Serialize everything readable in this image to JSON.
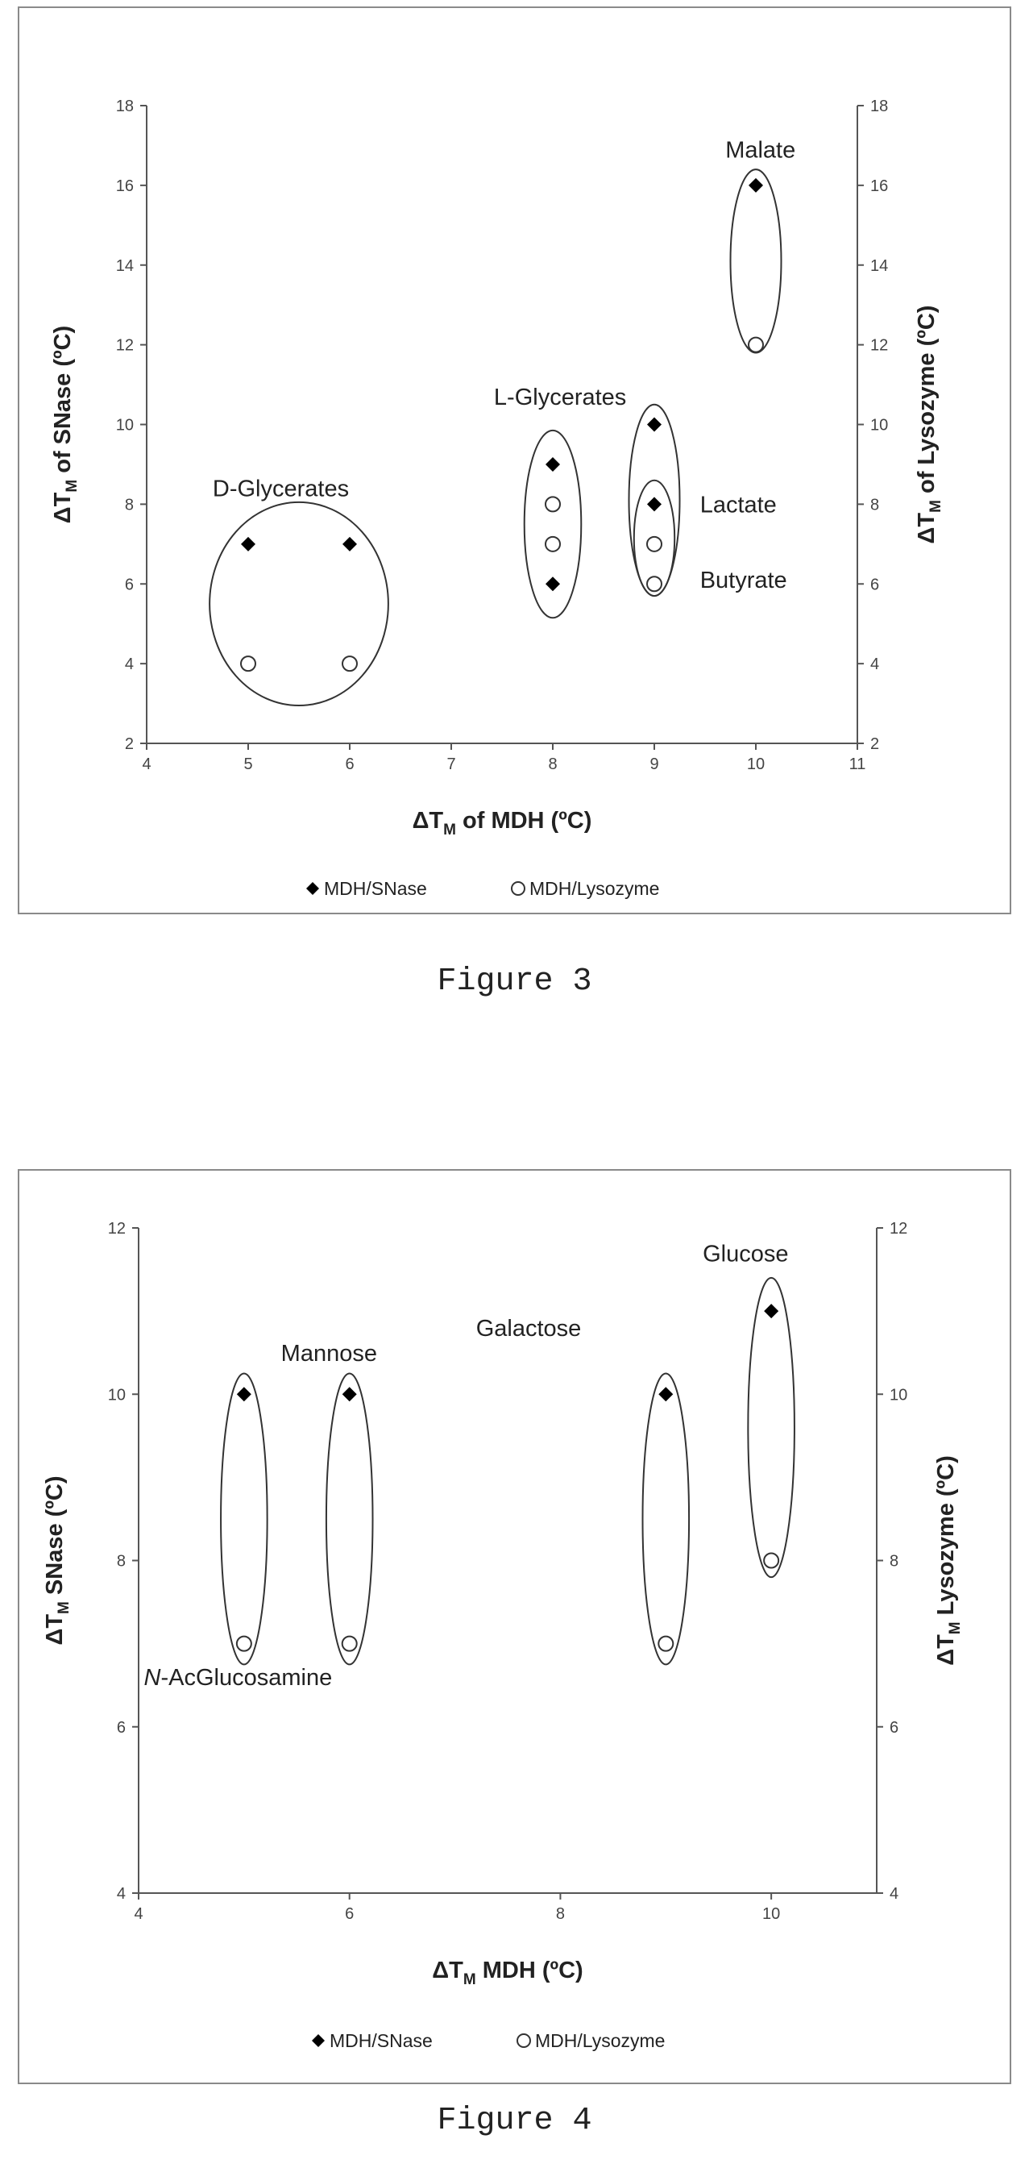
{
  "figures": [
    {
      "id": "fig3",
      "caption": "Figure 3",
      "chart_data": {
        "type": "scatter",
        "xlabel": {
          "prefix": "ΔT",
          "sub": "M",
          "suffix": " of MDH (ºC)"
        },
        "ylabel_left": {
          "prefix": "ΔT",
          "sub": "M",
          "suffix": " of SNase (ºC)"
        },
        "ylabel_right": {
          "prefix": "ΔT",
          "sub": "M",
          "suffix": " of Lysozyme (ºC)"
        },
        "xlim": [
          4,
          11
        ],
        "xticks": [
          4,
          5,
          6,
          7,
          8,
          9,
          10,
          11
        ],
        "ylim": [
          2,
          18
        ],
        "yticks": [
          2,
          4,
          6,
          8,
          10,
          12,
          14,
          16,
          18
        ],
        "grid": false,
        "legend_placement": "bottom",
        "series": [
          {
            "name": "MDH/SNase",
            "marker": "diamond-filled",
            "color": "#000000",
            "points": [
              [
                5,
                7
              ],
              [
                6,
                7
              ],
              [
                8,
                9
              ],
              [
                8,
                6
              ],
              [
                9,
                10
              ],
              [
                9,
                8
              ],
              [
                10,
                16
              ]
            ]
          },
          {
            "name": "MDH/Lysozyme",
            "marker": "circle-open",
            "color": "#333333",
            "points": [
              [
                5,
                4
              ],
              [
                6,
                4
              ],
              [
                8,
                8
              ],
              [
                8,
                7
              ],
              [
                9,
                7
              ],
              [
                9,
                6
              ],
              [
                10,
                12
              ]
            ]
          }
        ],
        "annotations": [
          {
            "label": "D-Glycerates",
            "shape": "circle",
            "cx": 5.5,
            "cy": 5.5,
            "rx": 0.88,
            "ry": 2.55,
            "label_x": 4.65,
            "label_y": 8.2
          },
          {
            "label": "L-Glycerates",
            "shape": "ellipse",
            "cx": 8,
            "cy": 7.5,
            "rx": 0.28,
            "ry": 2.35,
            "label_x": 7.42,
            "label_y": 10.5
          },
          {
            "label": "Lactate",
            "shape": "ellipse",
            "cx": 9,
            "cy": 8.1,
            "rx": 0.25,
            "ry": 2.4,
            "label_x": 9.45,
            "label_y": 7.8
          },
          {
            "label": "Butyrate",
            "shape": "ellipse",
            "cx": 9,
            "cy": 7.15,
            "rx": 0.2,
            "ry": 1.45,
            "label_x": 9.45,
            "label_y": 5.9
          },
          {
            "label": "Malate",
            "shape": "ellipse",
            "cx": 10,
            "cy": 14.1,
            "rx": 0.25,
            "ry": 2.3,
            "label_x": 9.7,
            "label_y": 16.7
          }
        ]
      }
    },
    {
      "id": "fig4",
      "caption": "Figure 4",
      "chart_data": {
        "type": "scatter",
        "xlabel": {
          "prefix": "ΔT",
          "sub": "M",
          "suffix": " MDH (ºC)"
        },
        "ylabel_left": {
          "prefix": "ΔT",
          "sub": "M",
          "suffix": " SNase (ºC)"
        },
        "ylabel_right": {
          "prefix": "ΔT",
          "sub": "M",
          "suffix": " Lysozyme (ºC)"
        },
        "xlim": [
          4,
          11
        ],
        "xticks": [
          4,
          6,
          8,
          10
        ],
        "ylim": [
          4,
          12
        ],
        "yticks": [
          4,
          6,
          8,
          10,
          12
        ],
        "grid": false,
        "legend_placement": "bottom",
        "series": [
          {
            "name": "MDH/SNase",
            "marker": "diamond-filled",
            "color": "#000000",
            "points": [
              [
                5,
                10
              ],
              [
                6,
                10
              ],
              [
                9,
                10
              ],
              [
                10,
                11
              ]
            ]
          },
          {
            "name": "MDH/Lysozyme",
            "marker": "circle-open",
            "color": "#333333",
            "points": [
              [
                5,
                7
              ],
              [
                6,
                7
              ],
              [
                9,
                7
              ],
              [
                10,
                8
              ]
            ]
          }
        ],
        "annotations": [
          {
            "label": "N-AcGlucosamine",
            "shape": "ellipse",
            "cx": 5,
            "cy": 8.5,
            "rx": 0.22,
            "ry": 1.75,
            "label_x": 4.05,
            "label_y": 6.5
          },
          {
            "label": "Mannose",
            "shape": "ellipse",
            "cx": 6,
            "cy": 8.5,
            "rx": 0.22,
            "ry": 1.75,
            "label_x": 5.35,
            "label_y": 10.4
          },
          {
            "label": "Galactose",
            "shape": "ellipse",
            "cx": 9,
            "cy": 8.5,
            "rx": 0.22,
            "ry": 1.75,
            "label_x": 7.2,
            "label_y": 10.7
          },
          {
            "label": "Glucose",
            "shape": "ellipse",
            "cx": 10,
            "cy": 9.6,
            "rx": 0.22,
            "ry": 1.8,
            "label_x": 9.35,
            "label_y": 11.6
          }
        ]
      }
    }
  ]
}
